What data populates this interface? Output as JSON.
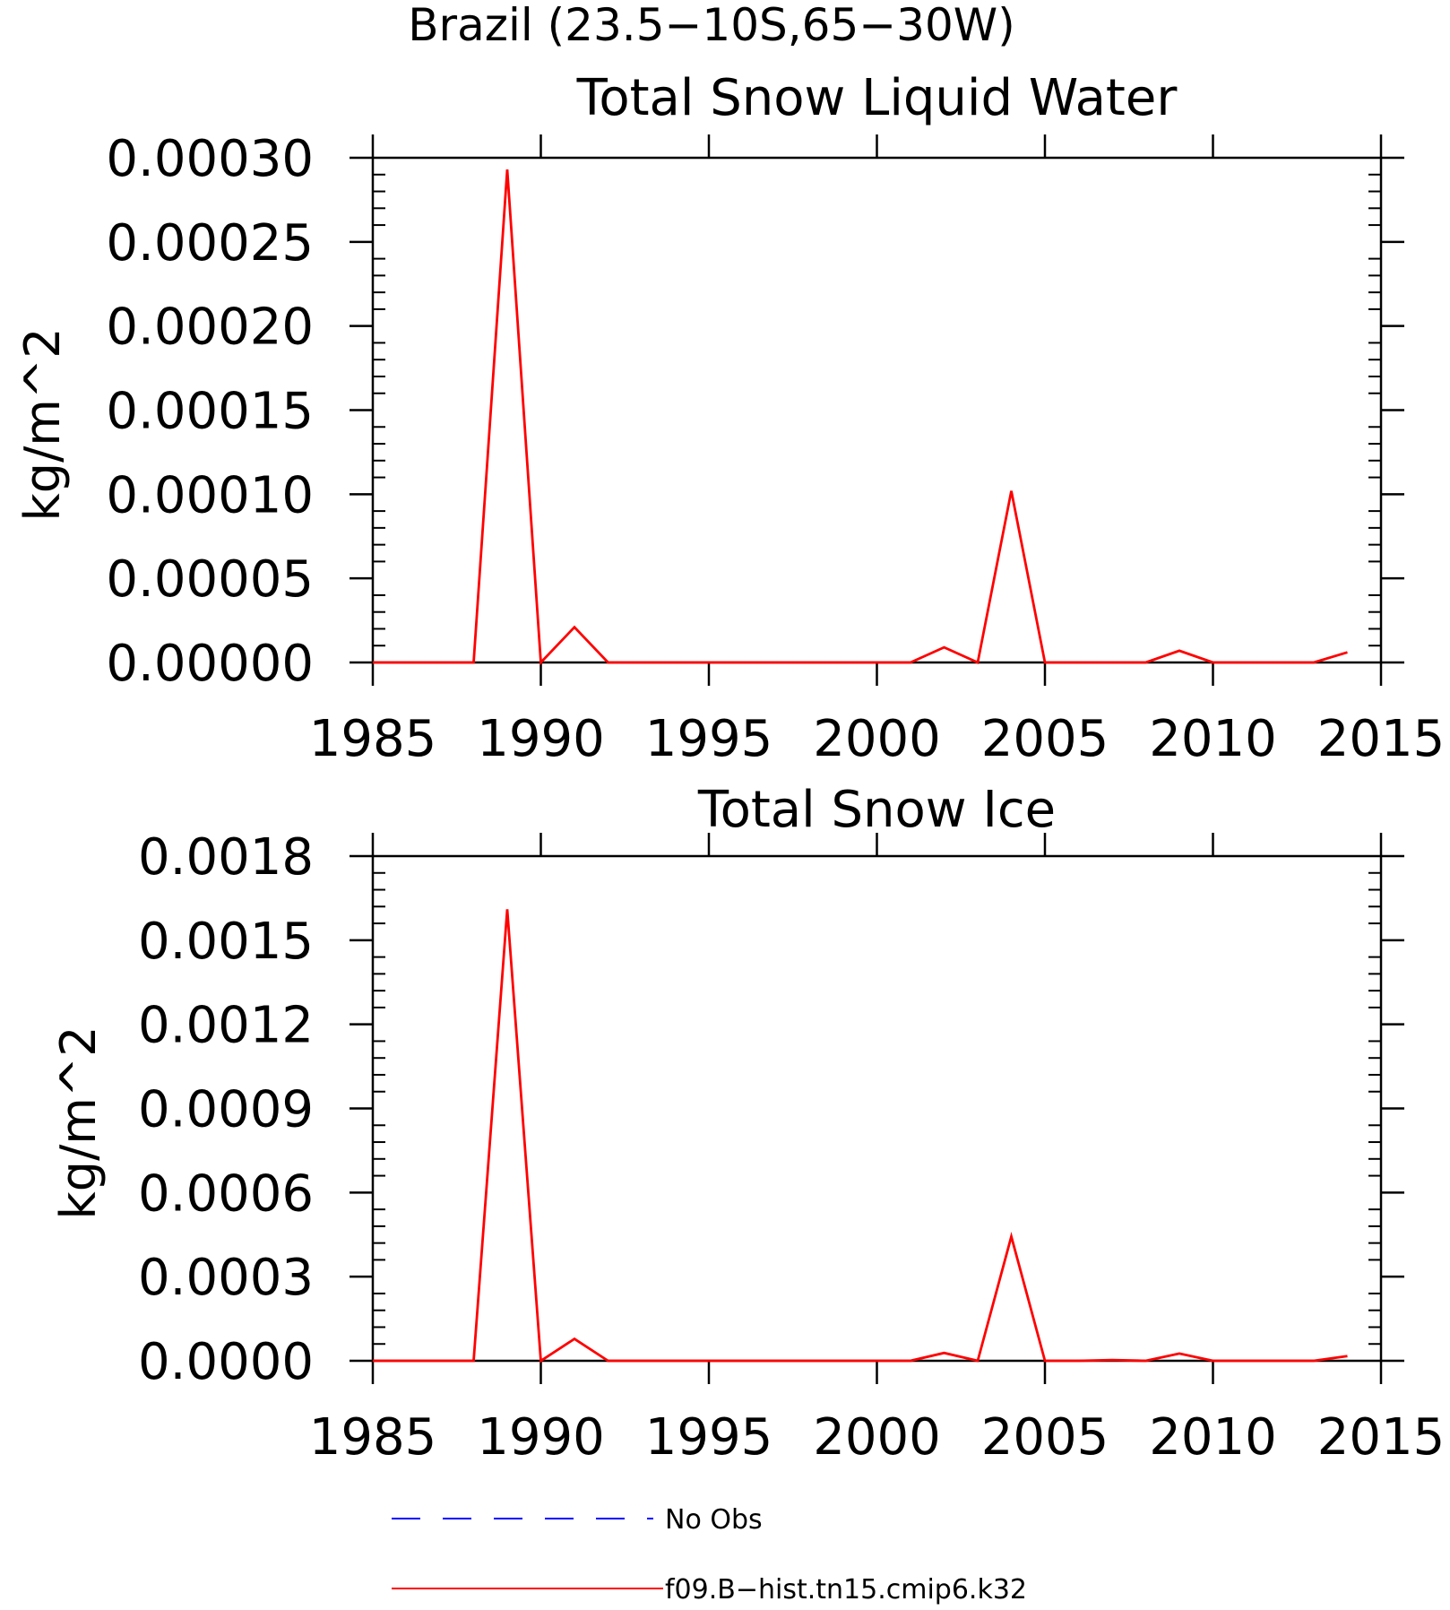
{
  "figure": {
    "title": "Brazil (23.5−10S,65−30W)"
  },
  "legend": [
    {
      "label": "No Obs",
      "color": "#0000ff",
      "dash": "dashed"
    },
    {
      "label": "f09.B−hist.tn15.cmip6.k32",
      "color": "#ff0000",
      "dash": "solid"
    }
  ],
  "chart_data": [
    {
      "type": "line",
      "title": "Total Snow Liquid Water",
      "xlabel": "",
      "ylabel": "kg/m^2",
      "xlim": [
        1985,
        2015
      ],
      "ylim": [
        0,
        0.0003
      ],
      "x_ticks": [
        "1985",
        "1990",
        "1995",
        "2000",
        "2005",
        "2010",
        "2015"
      ],
      "y_ticks": [
        "0.00000",
        "0.00005",
        "0.00010",
        "0.00015",
        "0.00020",
        "0.00025",
        "0.00030"
      ],
      "grid": false,
      "series": [
        {
          "name": "f09.B−hist.tn15.cmip6.k32",
          "color": "#ff0000",
          "x": [
            1985,
            1986,
            1987,
            1988,
            1989,
            1990,
            1991,
            1992,
            1993,
            1994,
            1995,
            1996,
            1997,
            1998,
            1999,
            2000,
            2001,
            2002,
            2003,
            2004,
            2005,
            2006,
            2007,
            2008,
            2009,
            2010,
            2011,
            2012,
            2013,
            2014
          ],
          "y": [
            0,
            0,
            0,
            0,
            0.000293,
            0,
            2.1e-05,
            0,
            0,
            0,
            0,
            0,
            0,
            0,
            0,
            0,
            0,
            9e-06,
            0,
            0.000102,
            0,
            0,
            0,
            0,
            7e-06,
            0,
            0,
            0,
            0,
            6e-06
          ]
        }
      ]
    },
    {
      "type": "line",
      "title": "Total Snow Ice",
      "xlabel": "",
      "ylabel": "kg/m^2",
      "xlim": [
        1985,
        2015
      ],
      "ylim": [
        0,
        0.0018
      ],
      "x_ticks": [
        "1985",
        "1990",
        "1995",
        "2000",
        "2005",
        "2010",
        "2015"
      ],
      "y_ticks": [
        "0.0000",
        "0.0003",
        "0.0006",
        "0.0009",
        "0.0012",
        "0.0015",
        "0.0018"
      ],
      "grid": false,
      "series": [
        {
          "name": "f09.B−hist.tn15.cmip6.k32",
          "color": "#ff0000",
          "x": [
            1985,
            1986,
            1987,
            1988,
            1989,
            1990,
            1991,
            1992,
            1993,
            1994,
            1995,
            1996,
            1997,
            1998,
            1999,
            2000,
            2001,
            2002,
            2003,
            2004,
            2005,
            2006,
            2007,
            2008,
            2009,
            2010,
            2011,
            2012,
            2013,
            2014
          ],
          "y": [
            0,
            0,
            0,
            0,
            0.00161,
            0,
            7.8e-05,
            0,
            0,
            0,
            0,
            0,
            0,
            0,
            0,
            0,
            0,
            2.8e-05,
            0,
            0.000443,
            0,
            0,
            3e-06,
            0,
            2.6e-05,
            0,
            0,
            0,
            0,
            1.7e-05
          ]
        }
      ]
    }
  ]
}
